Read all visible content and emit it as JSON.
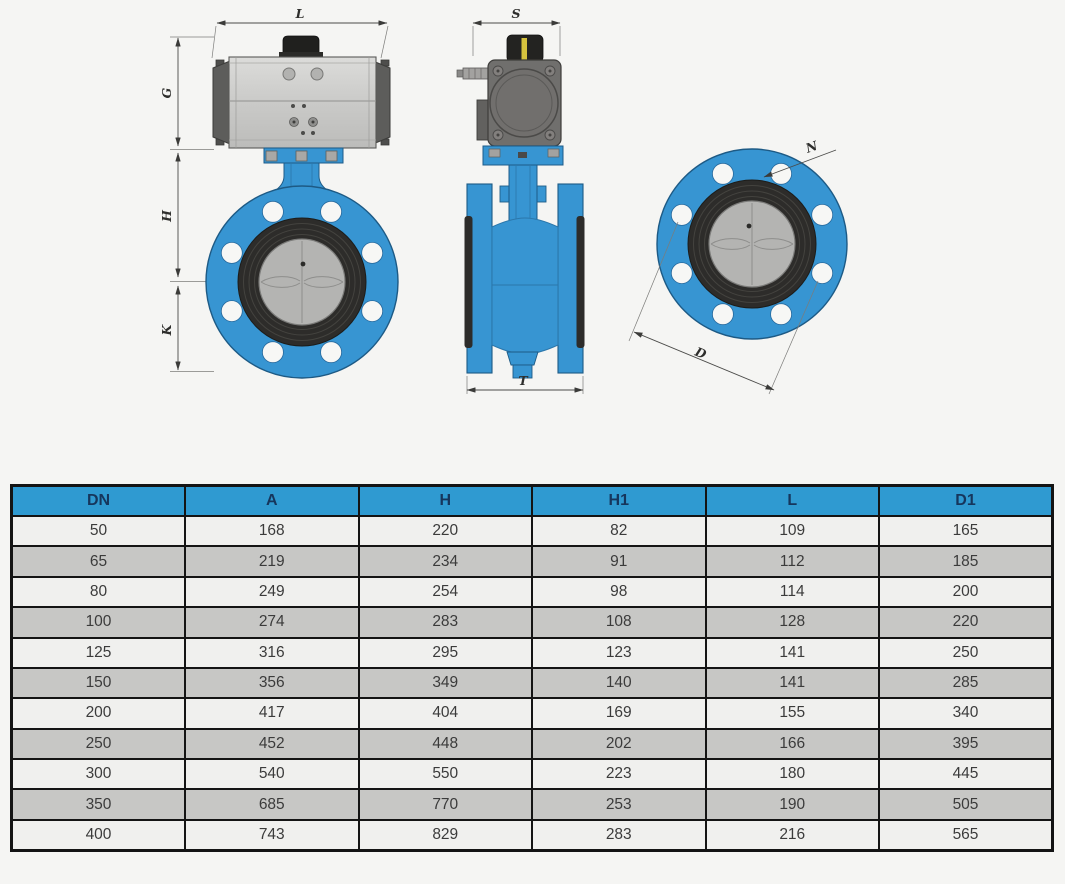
{
  "drawing": {
    "dim_labels": {
      "L": "L",
      "G": "G",
      "H": "H",
      "K": "K",
      "S": "S",
      "T": "T",
      "N": "N",
      "D": "D"
    }
  },
  "table": {
    "headers": [
      "DN",
      "A",
      "H",
      "H1",
      "L",
      "D1"
    ],
    "rows": [
      [
        "50",
        "168",
        "220",
        "82",
        "109",
        "165"
      ],
      [
        "65",
        "219",
        "234",
        "91",
        "112",
        "185"
      ],
      [
        "80",
        "249",
        "254",
        "98",
        "114",
        "200"
      ],
      [
        "100",
        "274",
        "283",
        "108",
        "128",
        "220"
      ],
      [
        "125",
        "316",
        "295",
        "123",
        "141",
        "250"
      ],
      [
        "150",
        "356",
        "349",
        "140",
        "141",
        "285"
      ],
      [
        "200",
        "417",
        "404",
        "169",
        "155",
        "340"
      ],
      [
        "250",
        "452",
        "448",
        "202",
        "166",
        "395"
      ],
      [
        "300",
        "540",
        "550",
        "223",
        "180",
        "445"
      ],
      [
        "350",
        "685",
        "770",
        "253",
        "190",
        "505"
      ],
      [
        "400",
        "743",
        "829",
        "283",
        "216",
        "565"
      ]
    ]
  },
  "colors": {
    "valve_blue": "#3795d2",
    "valve_blue_stroke": "#1d5a85",
    "seat_black": "#2d2c2a",
    "disc_gray": "#b4b4b2",
    "actuator_light_gray": "#cfcfcd",
    "actuator_dark_gray": "#5d5d5b",
    "side_actuator_gray": "#706f6d",
    "indicator_yellow": "#d6c33e",
    "table_header_blue": "#2f9ad1",
    "table_header_text": "#16365c",
    "row_light": "#f0f0ee",
    "row_dark": "#c7c7c5",
    "background": "#f5f5f3"
  }
}
